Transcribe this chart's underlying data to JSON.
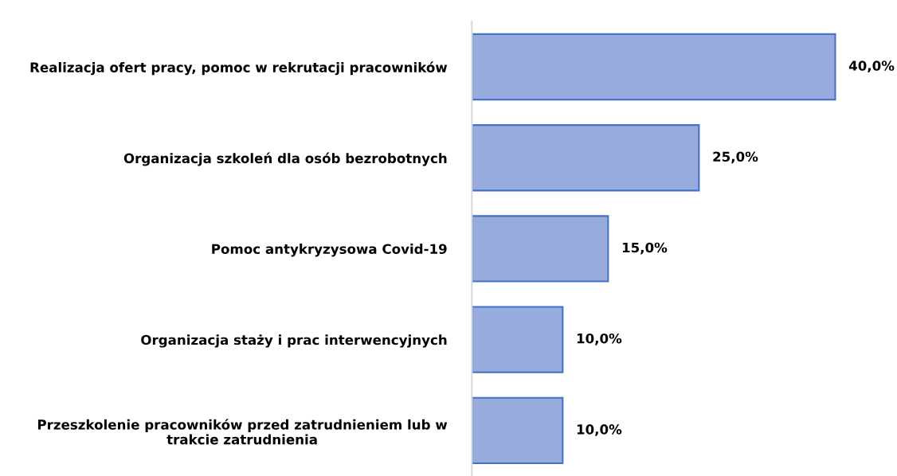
{
  "chart_data": {
    "type": "bar",
    "orientation": "horizontal",
    "categories": [
      "Realizacja ofert pracy, pomoc w rekrutacji pracowników",
      "Organizacja szkoleń dla osób bezrobotnych",
      "Pomoc antykryzysowa Covid-19",
      "Organizacja staży i prac interwencyjnych",
      "Przeszkolenie pracowników przed zatrudnieniem lub w\ntrakcie zatrudnienia"
    ],
    "values": [
      40.0,
      25.0,
      15.0,
      10.0,
      10.0
    ],
    "value_labels": [
      "40,0%",
      "25,0%",
      "15,0%",
      "10,0%",
      "10,0%"
    ],
    "color": "#97abdc",
    "grid": false,
    "legend": false
  }
}
